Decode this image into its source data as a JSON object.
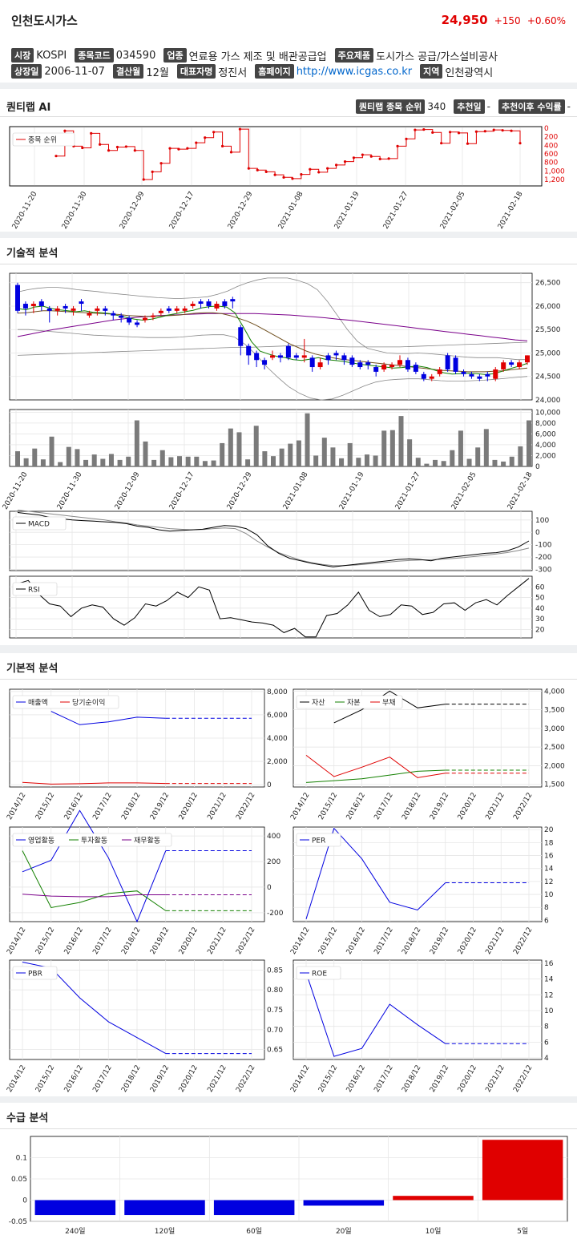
{
  "header": {
    "name": "인천도시가스",
    "price": "24,950",
    "change": "+150",
    "change_pct": "+0.60%"
  },
  "info1": [
    {
      "tag": "시장",
      "value": "KOSPI"
    },
    {
      "tag": "종목코드",
      "value": "034590"
    },
    {
      "tag": "업종",
      "value": "연료용 가스 제조 및 배관공급업"
    },
    {
      "tag": "주요제품",
      "value": "도시가스 공급/가스설비공사"
    }
  ],
  "info2": [
    {
      "tag": "상장일",
      "value": "2006-11-07"
    },
    {
      "tag": "결산월",
      "value": "12월"
    },
    {
      "tag": "대표자명",
      "value": "정진서"
    },
    {
      "tag": "홈페이지",
      "value": "http://www.icgas.co.kr",
      "link": true
    },
    {
      "tag": "지역",
      "value": "인천광역시"
    }
  ],
  "quant": {
    "title": "퀀티랩 AI",
    "rank_label": "퀀티랩 종목 순위",
    "rank_value": "340",
    "rec_label": "추천일",
    "rec_value": "-",
    "ret_label": "추천이후 수익률",
    "ret_value": "-",
    "legend": "종목 순위",
    "y_ticks": [
      "0",
      "200",
      "400",
      "600",
      "800",
      "1,000",
      "1,200"
    ],
    "x_ticks": [
      "2020-11-20",
      "2020-11-30",
      "2020-12-09",
      "2020-12-17",
      "2020-12-29",
      "2021-01-08",
      "2021-01-19",
      "2021-01-27",
      "2021-02-05",
      "2021-02-18"
    ],
    "rank_series": [
      650,
      60,
      420,
      460,
      120,
      380,
      520,
      440,
      430,
      520,
      1200,
      1020,
      820,
      470,
      490,
      470,
      340,
      220,
      90,
      420,
      560,
      20,
      940,
      980,
      1020,
      1090,
      1150,
      1180,
      1080,
      960,
      1030,
      940,
      860,
      780,
      690,
      620,
      660,
      720,
      710,
      420,
      250,
      40,
      30,
      100,
      350,
      90,
      110,
      360,
      80,
      70,
      40,
      50,
      60,
      350
    ]
  },
  "tech": {
    "title": "기술적 분석",
    "price_ticks": [
      "26,500",
      "26,000",
      "25,500",
      "25,000",
      "24,500",
      "24,000"
    ],
    "vol_ticks": [
      "10,000",
      "8,000",
      "6,000",
      "4,000",
      "2,000",
      "0"
    ],
    "x_ticks": [
      "2020-11-20",
      "2020-11-30",
      "2020-12-09",
      "2020-12-17",
      "2020-12-29",
      "2021-01-08",
      "2021-01-19",
      "2021-01-27",
      "2021-02-05",
      "2021-02-18"
    ],
    "macd_label": "MACD",
    "macd_ticks": [
      "100",
      "0",
      "-100",
      "-200",
      "-300"
    ],
    "rsi_label": "RSI",
    "rsi_ticks": [
      "60",
      "50",
      "40",
      "30",
      "20"
    ],
    "candles": [
      [
        26450,
        25900,
        26500,
        25850
      ],
      [
        26050,
        25950,
        26100,
        25800
      ],
      [
        26000,
        26050,
        26100,
        25850
      ],
      [
        26100,
        26000,
        26150,
        25900
      ],
      [
        25950,
        25900,
        26000,
        25650
      ],
      [
        25900,
        25950,
        26000,
        25800
      ],
      [
        26000,
        25950,
        26050,
        25850
      ],
      [
        25900,
        25950,
        26000,
        25800
      ],
      [
        26100,
        26050,
        26150,
        25900
      ],
      [
        25800,
        25850,
        25900,
        25750
      ],
      [
        25900,
        25950,
        26000,
        25800
      ],
      [
        25950,
        25900,
        26000,
        25800
      ],
      [
        25850,
        25800,
        25900,
        25700
      ],
      [
        25800,
        25750,
        25850,
        25650
      ],
      [
        25750,
        25650,
        25800,
        25600
      ],
      [
        25650,
        25600,
        25700,
        25550
      ],
      [
        25700,
        25750,
        25800,
        25650
      ],
      [
        25800,
        25800,
        25850,
        25700
      ],
      [
        25850,
        25900,
        25950,
        25800
      ],
      [
        25950,
        25900,
        26000,
        25850
      ],
      [
        25900,
        25950,
        26000,
        25850
      ],
      [
        25900,
        25950,
        26000,
        25850
      ],
      [
        26000,
        26050,
        26100,
        25950
      ],
      [
        26100,
        26050,
        26150,
        25950
      ],
      [
        26100,
        26000,
        26150,
        25950
      ],
      [
        25950,
        26050,
        26100,
        25900
      ],
      [
        26100,
        26000,
        26150,
        25950
      ],
      [
        26150,
        26100,
        26200,
        25950
      ],
      [
        25550,
        25150,
        25600,
        24950
      ],
      [
        25150,
        24950,
        25200,
        24750
      ],
      [
        25000,
        24850,
        25050,
        24700
      ],
      [
        24850,
        24750,
        24900,
        24650
      ],
      [
        24900,
        24950,
        25050,
        24850
      ],
      [
        24950,
        24900,
        25000,
        24800
      ],
      [
        25150,
        24900,
        25200,
        24850
      ],
      [
        24950,
        24900,
        25000,
        24850
      ],
      [
        24900,
        24950,
        25300,
        24800
      ],
      [
        24900,
        24700,
        24950,
        24600
      ],
      [
        24700,
        24800,
        24900,
        24650
      ],
      [
        24950,
        24850,
        25000,
        24750
      ],
      [
        25000,
        24950,
        25050,
        24850
      ],
      [
        24950,
        24850,
        25000,
        24750
      ],
      [
        24900,
        24750,
        24950,
        24700
      ],
      [
        24800,
        24700,
        24850,
        24650
      ],
      [
        24800,
        24750,
        24850,
        24650
      ],
      [
        24700,
        24600,
        24750,
        24500
      ],
      [
        24650,
        24750,
        24800,
        24600
      ],
      [
        24700,
        24750,
        24800,
        24650
      ],
      [
        24750,
        24850,
        24950,
        24700
      ],
      [
        24850,
        24650,
        24900,
        24600
      ],
      [
        24750,
        24600,
        24800,
        24550
      ],
      [
        24550,
        24450,
        24600,
        24400
      ],
      [
        24450,
        24500,
        24550,
        24400
      ],
      [
        24550,
        24650,
        24700,
        24500
      ],
      [
        24950,
        24650,
        25000,
        24600
      ],
      [
        24900,
        24600,
        24950,
        24550
      ],
      [
        24600,
        24550,
        24650,
        24500
      ],
      [
        24550,
        24500,
        24600,
        24450
      ],
      [
        24500,
        24450,
        24550,
        24400
      ],
      [
        24550,
        24500,
        24600,
        24400
      ],
      [
        24450,
        24650,
        24700,
        24400
      ],
      [
        24650,
        24800,
        24850,
        24600
      ],
      [
        24800,
        24750,
        24850,
        24700
      ],
      [
        24700,
        24800,
        24850,
        24650
      ],
      [
        24800,
        24950,
        24950,
        24750
      ]
    ],
    "volumes": [
      2800,
      1500,
      3300,
      1300,
      5500,
      800,
      3600,
      3200,
      1200,
      2200,
      1400,
      2300,
      1200,
      1800,
      8500,
      4600,
      1200,
      3000,
      1700,
      1900,
      1800,
      1800,
      1000,
      1100,
      4300,
      7000,
      6300,
      1300,
      7500,
      2800,
      1900,
      3300,
      4200,
      4800,
      9800,
      2000,
      5300,
      3500,
      1500,
      4300,
      1600,
      2200,
      2000,
      6600,
      6700,
      9300,
      5000,
      1600,
      500,
      1200,
      1000,
      3000,
      6600,
      1400,
      3500,
      6900,
      1200,
      900,
      1800,
      3700,
      8500
    ],
    "macd": [
      160,
      150,
      140,
      120,
      110,
      100,
      95,
      90,
      85,
      80,
      70,
      50,
      40,
      20,
      10,
      15,
      20,
      25,
      40,
      55,
      50,
      30,
      -20,
      -110,
      -170,
      -210,
      -230,
      -250,
      -265,
      -280,
      -270,
      -260,
      -250,
      -240,
      -230,
      -220,
      -215,
      -220,
      -230,
      -210,
      -200,
      -190,
      -180,
      -170,
      -165,
      -150,
      -120,
      -70
    ],
    "macd_signal": [
      180,
      170,
      160,
      150,
      140,
      130,
      120,
      110,
      100,
      85,
      75,
      60,
      50,
      40,
      30,
      25,
      20,
      22,
      30,
      35,
      30,
      -10,
      -70,
      -120,
      -165,
      -195,
      -225,
      -245,
      -260,
      -270,
      -270,
      -265,
      -258,
      -250,
      -242,
      -234,
      -228,
      -224,
      -222,
      -218,
      -212,
      -205,
      -196,
      -186,
      -176,
      -164,
      -148,
      -128
    ],
    "rsi": [
      63,
      66,
      53,
      44,
      42,
      32,
      40,
      43,
      41,
      30,
      24,
      31,
      44,
      42,
      47,
      55,
      50,
      60,
      57,
      30,
      31,
      29,
      27,
      26,
      24,
      17,
      21,
      13,
      13,
      33,
      35,
      43,
      55,
      38,
      32,
      34,
      43,
      42,
      34,
      36,
      44,
      45,
      38,
      45,
      48,
      43,
      52,
      60,
      68
    ],
    "ma5": [
      25950,
      25920,
      25980,
      26000,
      25950,
      25920,
      25900,
      25880,
      25900,
      25870,
      25860,
      25840,
      25800,
      25760,
      25720,
      25700,
      25720,
      25760,
      25810,
      25840,
      25880,
      25910,
      25960,
      25990,
      26000,
      25980,
      25860,
      25560,
      25240,
      25040,
      24980,
      24930,
      24900,
      24860,
      24840,
      24870,
      24900,
      24860,
      24840,
      24820,
      24790,
      24760,
      24740,
      24720,
      24700,
      24680,
      24690,
      24710,
      24720,
      24690,
      24630,
      24580,
      24550,
      24560,
      24570,
      24560,
      24540,
      24560,
      24610,
      24670,
      24720,
      24780
    ],
    "ma20": [
      25850,
      25860,
      25880,
      25900,
      25900,
      25890,
      25880,
      25870,
      25860,
      25850,
      25840,
      25830,
      25820,
      25800,
      25790,
      25780,
      25780,
      25790,
      25800,
      25810,
      25830,
      25850,
      25860,
      25860,
      25840,
      25800,
      25740,
      25680,
      25600,
      25500,
      25400,
      25300,
      25200,
      25120,
      25040,
      24980,
      24940,
      24900,
      24870,
      24850,
      24830,
      24810,
      24790,
      24770,
      24750,
      24730,
      24710,
      24690,
      24670,
      24650,
      24630,
      24620,
      24610,
      24600,
      24600,
      24600,
      24610,
      24620,
      24640,
      24660,
      24680
    ],
    "ma60": [
      25350,
      25400,
      25450,
      25500,
      25540,
      25580,
      25620,
      25660,
      25700,
      25730,
      25760,
      25780,
      25800,
      25810,
      25820,
      25830,
      25840,
      25840,
      25840,
      25840,
      25840,
      25830,
      25820,
      25810,
      25790,
      25770,
      25750,
      25720,
      25700,
      25670,
      25640,
      25610,
      25580,
      25550,
      25520,
      25490,
      25460,
      25430,
      25400,
      25370,
      25340,
      25310,
      25280,
      25260
    ],
    "bb_up": [
      26300,
      26350,
      26380,
      26400,
      26400,
      26380,
      26350,
      26330,
      26310,
      26280,
      26260,
      26240,
      26220,
      26200,
      26180,
      26170,
      26160,
      26170,
      26180,
      26200,
      26250,
      26320,
      26420,
      26500,
      26560,
      26600,
      26600,
      26600,
      26550,
      26480,
      26350,
      26100,
      25800,
      25500,
      25250,
      25100,
      25050,
      25000,
      24990,
      24990,
      25000,
      24990,
      24970,
      24950,
      24930,
      24910,
      24900,
      24900,
      24900,
      24880,
      24860,
      24860
    ],
    "bb_dn": [
      25500,
      25500,
      25480,
      25460,
      25440,
      25420,
      25400,
      25380,
      25370,
      25360,
      25350,
      25340,
      25330,
      25330,
      25330,
      25340,
      25360,
      25380,
      25390,
      25390,
      25340,
      25180,
      24960,
      24700,
      24480,
      24280,
      24140,
      24040,
      24000,
      24020,
      24100,
      24200,
      24300,
      24380,
      24420,
      24440,
      24450,
      24450,
      24430,
      24410,
      24400,
      24400,
      24410,
      24420,
      24440,
      24460,
      24480,
      24500
    ],
    "ma120": [
      24950,
      24960,
      24970,
      24980,
      24990,
      25000,
      25010,
      25020,
      25030,
      25040,
      25050,
      25060,
      25070,
      25080,
      25090,
      25100,
      25110,
      25120,
      25120,
      25130,
      25140,
      25150,
      25150,
      25150,
      25150,
      25140,
      25130,
      25130,
      25130,
      25130,
      25130,
      25140,
      25150,
      25160,
      25170,
      25180,
      25190,
      25200,
      25210,
      25220,
      25230
    ]
  },
  "fund": {
    "title": "기본적 분석",
    "years": [
      "2014/12",
      "2015/12",
      "2016/12",
      "2017/12",
      "2018/12",
      "2019/12",
      "2020/12",
      "2021/12",
      "2022/12"
    ],
    "c1": {
      "legend": [
        "매출액",
        "당기순이익"
      ],
      "ticks": [
        "8,000",
        "6,000",
        "4,000",
        "2,000",
        "0"
      ],
      "sales": [
        null,
        6300,
        5150,
        5400,
        5800,
        5700
      ],
      "net": [
        200,
        50,
        80,
        150,
        150,
        100
      ]
    },
    "c2": {
      "legend": [
        "자산",
        "자본",
        "부채"
      ],
      "ticks": [
        "4,000",
        "3,500",
        "3,000",
        "2,500",
        "2,000",
        "1,500"
      ],
      "assets": [
        null,
        3150,
        3500,
        4000,
        3550,
        3650
      ],
      "equity": [
        1550,
        1600,
        1650,
        1750,
        1850,
        1880
      ],
      "liab": [
        2280,
        1710,
        1960,
        2230,
        1680,
        1800
      ]
    },
    "c3": {
      "legend": [
        "영업활동",
        "투자활동",
        "재무활동"
      ],
      "ticks": [
        "400",
        "200",
        "0",
        "-200"
      ],
      "op": [
        120,
        210,
        600,
        230,
        -270,
        285
      ],
      "inv": [
        285,
        -160,
        -120,
        -50,
        -30,
        -185
      ],
      "fin": [
        -55,
        -70,
        -75,
        -75,
        -60,
        -60
      ]
    },
    "c4": {
      "legend": [
        "PER"
      ],
      "ticks": [
        "20",
        "18",
        "16",
        "14",
        "12",
        "10",
        "8",
        "6"
      ],
      "per": [
        6.2,
        20.2,
        15.5,
        8.8,
        7.6,
        11.8
      ]
    },
    "c5": {
      "legend": [
        "PBR"
      ],
      "ticks": [
        "0.85",
        "0.80",
        "0.75",
        "0.70",
        "0.65"
      ],
      "pbr": [
        0.87,
        0.855,
        0.78,
        0.72,
        0.68,
        0.64
      ]
    },
    "c6": {
      "legend": [
        "ROE"
      ],
      "ticks": [
        "16",
        "14",
        "12",
        "10",
        "8",
        "6",
        "4"
      ],
      "roe": [
        14.8,
        4.2,
        5.2,
        10.8,
        8.2,
        5.8
      ]
    }
  },
  "supply": {
    "title": "수급 분석",
    "ticks": [
      "0.1",
      "0.05",
      "0",
      "-0.05"
    ],
    "categories": [
      "240일",
      "120일",
      "60일",
      "20일",
      "10일",
      "5일"
    ],
    "values": [
      -0.035,
      -0.035,
      -0.035,
      -0.013,
      0.01,
      0.142
    ]
  },
  "colors": {
    "up": "#e00000",
    "down": "#0000e0",
    "green": "#138000",
    "purple": "#7a008a",
    "brown": "#705020",
    "gray": "#888888"
  }
}
